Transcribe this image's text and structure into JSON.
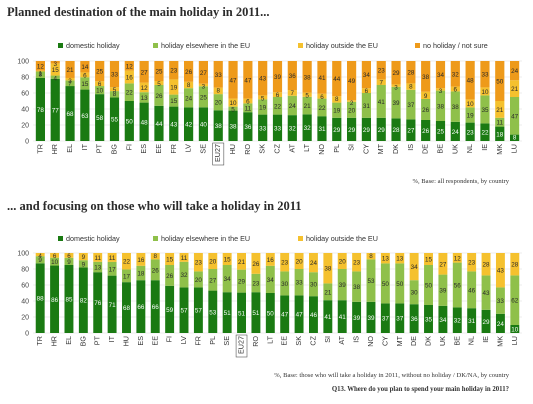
{
  "colors": {
    "domestic": "#1a7a12",
    "elsewhere_eu": "#8fc04a",
    "outside_eu": "#f5c12e",
    "no_holiday": "#ee9a1a",
    "grid": "#dcdcdc"
  },
  "chart_data": [
    {
      "type": "bar",
      "stacked": true,
      "title": "Planned destination of the main holiday in 2011...",
      "categories": [
        "TR",
        "HR",
        "EL",
        "IT",
        "PT",
        "BG",
        "FI",
        "ES",
        "EE",
        "FR",
        "LV",
        "SE",
        "EU27",
        "HU",
        "RO",
        "SK",
        "CZ",
        "AT",
        "LT",
        "NO",
        "PL",
        "SI",
        "CY",
        "MT",
        "DK",
        "IS",
        "DE",
        "BE",
        "UK",
        "NL",
        "IE",
        "MK",
        "LU"
      ],
      "highlight_category": "EU27",
      "ylim": [
        0,
        100
      ],
      "yticks": [
        0,
        20,
        40,
        60,
        80,
        100
      ],
      "grid": true,
      "legend_position": "top",
      "series": [
        {
          "name": "domestic holiday",
          "color_key": "domestic",
          "values": [
            78,
            77,
            68,
            63,
            58,
            55,
            50,
            48,
            44,
            43,
            42,
            40,
            38,
            38,
            36,
            33,
            33,
            32,
            32,
            31,
            29,
            29,
            29,
            29,
            28,
            27,
            26,
            25,
            24,
            23,
            22,
            18,
            8
          ]
        },
        {
          "name": "holiday elsewhere in the EU",
          "color_key": "elsewhere_eu",
          "values": [
            8,
            4,
            7,
            15,
            10,
            8,
            22,
            13,
            26,
            15,
            24,
            25,
            20,
            5,
            11,
            19,
            22,
            24,
            21,
            22,
            19,
            20,
            31,
            41,
            39,
            37,
            26,
            38,
            38,
            19,
            35,
            11,
            47
          ]
        },
        {
          "name": "holiday outside the EU",
          "color_key": "outside_eu",
          "values": [
            1,
            15,
            3,
            6,
            6,
            5,
            16,
            12,
            5,
            19,
            8,
            3,
            8,
            10,
            6,
            5,
            6,
            7,
            5,
            6,
            8,
            2,
            6,
            7,
            3,
            8,
            9,
            3,
            6,
            10,
            10,
            21,
            21
          ]
        },
        {
          "name": "no holiday / not sure",
          "color_key": "no_holiday",
          "values": [
            12,
            3,
            21,
            14,
            25,
            33,
            12,
            27,
            25,
            23,
            26,
            27,
            33,
            47,
            47,
            43,
            39,
            36,
            38,
            41,
            44,
            49,
            34,
            23,
            29,
            28,
            38,
            34,
            32,
            48,
            33,
            50,
            24
          ]
        }
      ]
    },
    {
      "type": "bar",
      "stacked": true,
      "title": "... and focusing on those who will take a holiday in 2011",
      "categories": [
        "TR",
        "HR",
        "EL",
        "BG",
        "PT",
        "IT",
        "HU",
        "ES",
        "EE",
        "FI",
        "LV",
        "FR",
        "PL",
        "SE",
        "EU27",
        "RO",
        "LT",
        "EE",
        "SK",
        "CZ",
        "SI",
        "AT",
        "IS",
        "NO",
        "CY",
        "MT",
        "DE",
        "DK",
        "UK",
        "BE",
        "NL",
        "IE",
        "MK",
        "LU"
      ],
      "highlight_category": "EU27",
      "ylim": [
        0,
        100
      ],
      "yticks": [
        0,
        20,
        40,
        60,
        80,
        100
      ],
      "grid": true,
      "legend_position": "top",
      "series": [
        {
          "name": "domestic holiday",
          "color_key": "domestic",
          "values": [
            88,
            86,
            85,
            82,
            76,
            71,
            68,
            66,
            66,
            59,
            57,
            57,
            53,
            51,
            51,
            51,
            50,
            47,
            47,
            46,
            41,
            41,
            39,
            39,
            37,
            37,
            36,
            35,
            34,
            32,
            31,
            29,
            24,
            10
          ]
        },
        {
          "name": "holiday elsewhere in the EU",
          "color_key": "elsewhere_eu",
          "values": [
            9,
            10,
            9,
            9,
            13,
            17,
            17,
            18,
            26,
            26,
            32,
            20,
            27,
            34,
            29,
            23,
            34,
            30,
            33,
            30,
            21,
            39,
            38,
            53,
            50,
            50,
            30,
            50,
            39,
            56,
            46,
            43,
            33,
            62
          ]
        },
        {
          "name": "holiday outside the EU",
          "color_key": "outside_eu",
          "values": [
            4,
            6,
            6,
            9,
            11,
            11,
            22,
            16,
            8,
            15,
            11,
            23,
            20,
            15,
            21,
            26,
            16,
            23,
            20,
            24,
            38,
            20,
            23,
            8,
            13,
            13,
            34,
            15,
            27,
            12,
            23,
            28,
            43,
            28
          ]
        }
      ]
    }
  ],
  "page": {
    "title1": "Planned destination of the main holiday in 2011...",
    "title2": "... and focusing on those who will take a holiday in 2011",
    "note1": "%, Base: all respondents, by country",
    "note2": "%, Base: those who will take a holiday in 2011, without no holiday / DK/NA, by country",
    "question": "Q13. Where do you plan to spend your main holiday in 2011?"
  }
}
